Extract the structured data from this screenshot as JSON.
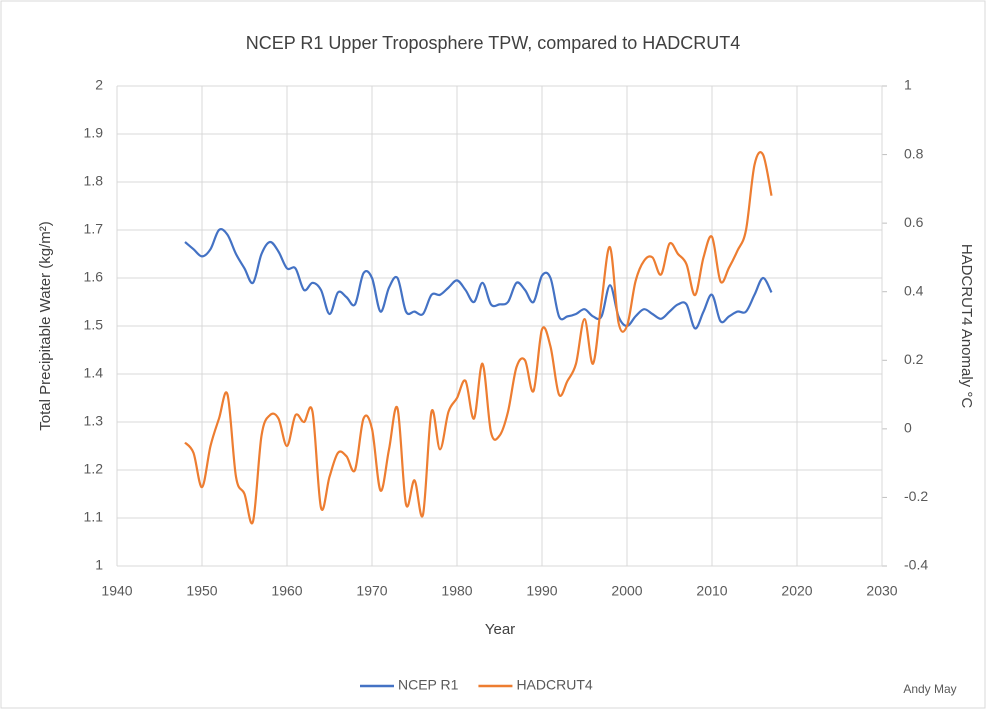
{
  "chart_data": {
    "type": "line",
    "title": "NCEP R1 Upper Troposphere TPW, compared to HADCRUT4",
    "x_label": "Year",
    "y_label": "Total Precipitable Water (kg/m²)",
    "y2_label": "HADCRUT4 Anomaly °C",
    "credit": "Andy May",
    "x": [
      1948,
      1949,
      1950,
      1951,
      1952,
      1953,
      1954,
      1955,
      1956,
      1957,
      1958,
      1959,
      1960,
      1961,
      1962,
      1963,
      1964,
      1965,
      1966,
      1967,
      1968,
      1969,
      1970,
      1971,
      1972,
      1973,
      1974,
      1975,
      1976,
      1977,
      1978,
      1979,
      1980,
      1981,
      1982,
      1983,
      1984,
      1985,
      1986,
      1987,
      1988,
      1989,
      1990,
      1991,
      1992,
      1993,
      1994,
      1995,
      1996,
      1997,
      1998,
      1999,
      2000,
      2001,
      2002,
      2003,
      2004,
      2005,
      2006,
      2007,
      2008,
      2009,
      2010,
      2011,
      2012,
      2013,
      2014,
      2015,
      2016,
      2017
    ],
    "series": [
      {
        "name": "NCEP R1",
        "color": "#4472c4",
        "values": [
          1.675,
          1.66,
          1.645,
          1.66,
          1.7,
          1.69,
          1.65,
          1.62,
          1.59,
          1.65,
          1.675,
          1.655,
          1.62,
          1.62,
          1.575,
          1.59,
          1.575,
          1.525,
          1.57,
          1.56,
          1.545,
          1.61,
          1.6,
          1.53,
          1.58,
          1.6,
          1.53,
          1.53,
          1.525,
          1.565,
          1.565,
          1.58,
          1.595,
          1.575,
          1.55,
          1.59,
          1.545,
          1.545,
          1.55,
          1.59,
          1.575,
          1.55,
          1.605,
          1.6,
          1.52,
          1.52,
          1.525,
          1.535,
          1.52,
          1.52,
          1.585,
          1.52,
          1.5,
          1.52,
          1.535,
          1.525,
          1.515,
          1.53,
          1.545,
          1.545,
          1.495,
          1.53,
          1.565,
          1.51,
          1.52,
          1.53,
          1.53,
          1.565,
          1.6,
          1.57
        ]
      },
      {
        "name": "HADCRUT4",
        "color": "#ed7d31",
        "axis": "y2",
        "values": [
          -0.04,
          -0.07,
          -0.17,
          -0.05,
          0.03,
          0.1,
          -0.14,
          -0.19,
          -0.27,
          -0.02,
          0.04,
          0.03,
          -0.05,
          0.04,
          0.02,
          0.05,
          -0.23,
          -0.14,
          -0.07,
          -0.08,
          -0.12,
          0.03,
          0.0,
          -0.18,
          -0.06,
          0.06,
          -0.22,
          -0.15,
          -0.25,
          0.05,
          -0.06,
          0.05,
          0.09,
          0.14,
          0.03,
          0.19,
          -0.01,
          -0.02,
          0.05,
          0.18,
          0.2,
          0.11,
          0.29,
          0.24,
          0.1,
          0.14,
          0.19,
          0.32,
          0.19,
          0.37,
          0.53,
          0.31,
          0.3,
          0.43,
          0.49,
          0.5,
          0.45,
          0.54,
          0.51,
          0.48,
          0.39,
          0.5,
          0.56,
          0.43,
          0.47,
          0.52,
          0.58,
          0.77,
          0.8,
          0.68
        ]
      }
    ],
    "xlim": [
      1940,
      2030
    ],
    "xticks": [
      1940,
      1950,
      1960,
      1970,
      1980,
      1990,
      2000,
      2010,
      2020,
      2030
    ],
    "ylim": [
      1,
      2
    ],
    "yticks": [
      1,
      1.1,
      1.2,
      1.3,
      1.4,
      1.5,
      1.6,
      1.7,
      1.8,
      1.9,
      2
    ],
    "y2lim": [
      -0.4,
      1
    ],
    "y2ticks": [
      -0.4,
      -0.2,
      0,
      0.2,
      0.4,
      0.6,
      0.8,
      1
    ],
    "grid": true,
    "legend": "bottom"
  }
}
